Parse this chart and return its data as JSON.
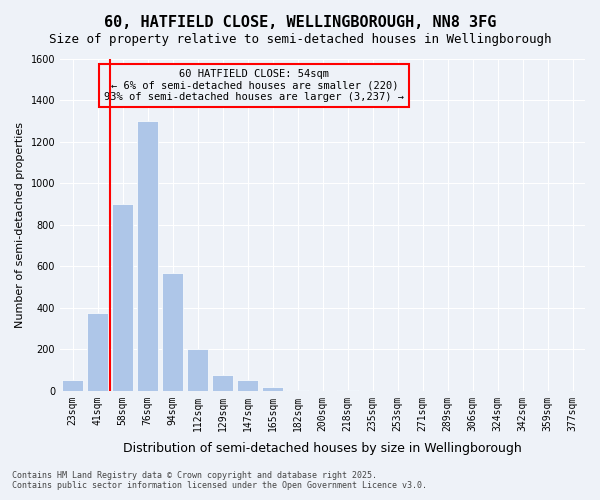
{
  "title": "60, HATFIELD CLOSE, WELLINGBOROUGH, NN8 3FG",
  "subtitle": "Size of property relative to semi-detached houses in Wellingborough",
  "xlabel": "Distribution of semi-detached houses by size in Wellingborough",
  "ylabel": "Number of semi-detached properties",
  "categories": [
    "23sqm",
    "41sqm",
    "58sqm",
    "76sqm",
    "94sqm",
    "112sqm",
    "129sqm",
    "147sqm",
    "165sqm",
    "182sqm",
    "200sqm",
    "218sqm",
    "235sqm",
    "253sqm",
    "271sqm",
    "289sqm",
    "306sqm",
    "324sqm",
    "342sqm",
    "359sqm",
    "377sqm"
  ],
  "values": [
    50,
    375,
    900,
    1300,
    570,
    200,
    75,
    50,
    20,
    5,
    0,
    5,
    0,
    0,
    0,
    0,
    0,
    0,
    0,
    0,
    0
  ],
  "bar_color": "#aec6e8",
  "redline_x": 1.5,
  "ylim": [
    0,
    1600
  ],
  "yticks": [
    0,
    200,
    400,
    600,
    800,
    1000,
    1200,
    1400,
    1600
  ],
  "annotation_title": "60 HATFIELD CLOSE: 54sqm",
  "annotation_line1": "← 6% of semi-detached houses are smaller (220)",
  "annotation_line2": "93% of semi-detached houses are larger (3,237) →",
  "footer1": "Contains HM Land Registry data © Crown copyright and database right 2025.",
  "footer2": "Contains public sector information licensed under the Open Government Licence v3.0.",
  "background_color": "#eef2f8",
  "grid_color": "#ffffff",
  "title_fontsize": 11,
  "subtitle_fontsize": 9,
  "tick_fontsize": 7,
  "ylabel_fontsize": 8,
  "xlabel_fontsize": 9
}
